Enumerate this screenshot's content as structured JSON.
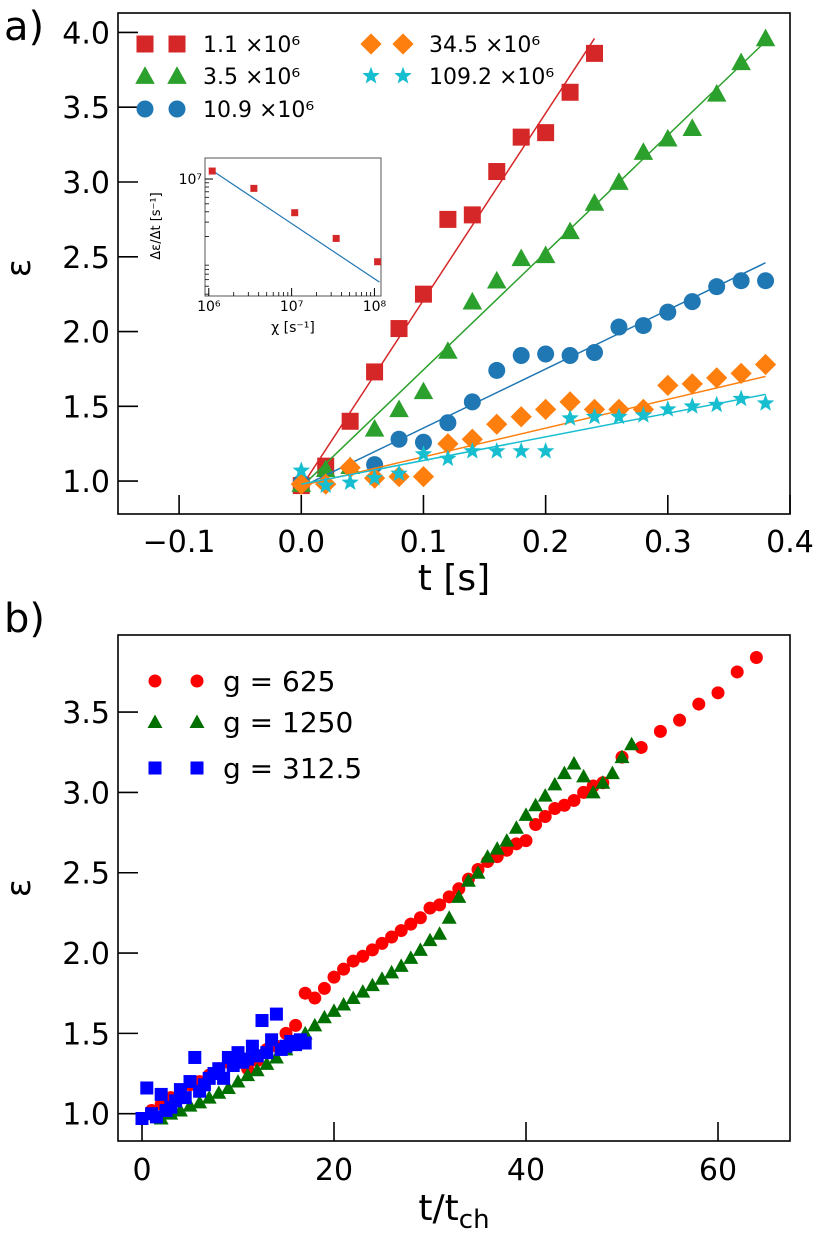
{
  "chart_data": [
    {
      "panel": "a)",
      "type": "scatter",
      "xlabel": "t [s]",
      "ylabel": "ε",
      "xlim": [
        -0.15,
        0.4
      ],
      "ylim": [
        0.78,
        4.13
      ],
      "xticks": [
        "−0.1",
        "0.0",
        "0.1",
        "0.2",
        "0.3",
        "0.4"
      ],
      "yticks": [
        "1.0",
        "1.5",
        "2.0",
        "2.5",
        "3.0",
        "3.5",
        "4.0"
      ],
      "legend_position": "top-left",
      "series": [
        {
          "name": "1.1 ×10⁶",
          "marker": "square",
          "color": "#d62728",
          "x": [
            0.0,
            0.02,
            0.04,
            0.06,
            0.08,
            0.1,
            0.12,
            0.14,
            0.16,
            0.18,
            0.2,
            0.22,
            0.24
          ],
          "y": [
            0.97,
            1.1,
            1.4,
            1.73,
            2.02,
            2.25,
            2.75,
            2.78,
            3.07,
            3.3,
            3.33,
            3.6,
            3.86
          ],
          "fit": [
            [
              0.0,
              0.96
            ],
            [
              0.24,
              3.96
            ]
          ]
        },
        {
          "name": "3.5 ×10⁶",
          "marker": "triangle",
          "color": "#2ca02c",
          "x": [
            0.0,
            0.02,
            0.04,
            0.06,
            0.08,
            0.1,
            0.12,
            0.14,
            0.16,
            0.18,
            0.2,
            0.22,
            0.24,
            0.26,
            0.28,
            0.3,
            0.32,
            0.34,
            0.36,
            0.38
          ],
          "y": [
            0.98,
            1.08,
            1.1,
            1.35,
            1.48,
            1.6,
            1.87,
            2.2,
            2.34,
            2.49,
            2.51,
            2.67,
            2.86,
            3.0,
            3.2,
            3.29,
            3.36,
            3.59,
            3.8,
            3.96
          ],
          "fit": [
            [
              0.0,
              0.96
            ],
            [
              0.38,
              3.94
            ]
          ]
        },
        {
          "name": "10.9 ×10⁶",
          "marker": "circle",
          "color": "#1f77b4",
          "x": [
            0.0,
            0.06,
            0.08,
            0.1,
            0.12,
            0.14,
            0.16,
            0.18,
            0.2,
            0.22,
            0.24,
            0.26,
            0.28,
            0.3,
            0.32,
            0.34,
            0.36,
            0.38
          ],
          "y": [
            0.99,
            1.11,
            1.28,
            1.26,
            1.39,
            1.53,
            1.74,
            1.84,
            1.85,
            1.84,
            1.86,
            2.03,
            2.04,
            2.13,
            2.2,
            2.3,
            2.34,
            2.34
          ],
          "fit": [
            [
              0.0,
              0.96
            ],
            [
              0.38,
              2.46
            ]
          ]
        },
        {
          "name": "34.5 ×10⁶",
          "marker": "diamond",
          "color": "#ff7f0e",
          "x": [
            0.0,
            0.02,
            0.04,
            0.06,
            0.08,
            0.1,
            0.12,
            0.14,
            0.16,
            0.18,
            0.2,
            0.22,
            0.24,
            0.26,
            0.28,
            0.3,
            0.32,
            0.34,
            0.36,
            0.38
          ],
          "y": [
            0.98,
            0.98,
            1.09,
            1.02,
            1.03,
            1.03,
            1.25,
            1.28,
            1.38,
            1.43,
            1.48,
            1.53,
            1.48,
            1.48,
            1.48,
            1.64,
            1.65,
            1.69,
            1.72,
            1.78
          ],
          "fit": [
            [
              0.0,
              0.97
            ],
            [
              0.38,
              1.7
            ]
          ]
        },
        {
          "name": "109.2 ×10⁶",
          "marker": "star",
          "color": "#17becf",
          "x": [
            0.0,
            0.02,
            0.04,
            0.06,
            0.08,
            0.1,
            0.12,
            0.14,
            0.16,
            0.18,
            0.2,
            0.22,
            0.24,
            0.26,
            0.28,
            0.3,
            0.32,
            0.34,
            0.36,
            0.38
          ],
          "y": [
            1.07,
            0.97,
            0.99,
            1.02,
            1.05,
            1.18,
            1.15,
            1.2,
            1.2,
            1.2,
            1.2,
            1.42,
            1.43,
            1.43,
            1.44,
            1.48,
            1.5,
            1.51,
            1.55,
            1.52
          ],
          "fit": [
            [
              0.0,
              0.98
            ],
            [
              0.38,
              1.58
            ]
          ]
        }
      ],
      "inset": {
        "type": "scatter",
        "scale": "log-log",
        "xlabel": "χ [s⁻¹]",
        "ylabel": "Δε/Δt [s⁻¹]",
        "xticks": [
          "10⁶",
          "10⁷",
          "10⁸"
        ],
        "yticks": [
          "10⁷"
        ],
        "xlim": [
          900000,
          120000000
        ],
        "ylim": [
          380000,
          18000000
        ],
        "x": [
          1100000,
          3500000,
          10900000,
          34500000,
          109200000
        ],
        "y": [
          12500000,
          7700000,
          3900000,
          1900000,
          990000
        ],
        "fit": [
          [
            1000000,
            13500000
          ],
          [
            115000000,
            560000
          ]
        ],
        "color": "#d62728",
        "line_color": "#1f77b4"
      }
    },
    {
      "panel": "b)",
      "type": "scatter",
      "xlabel": "t/t",
      "xlabel_sub": "ch",
      "ylabel": "ε",
      "xlim": [
        -2.5,
        67.5
      ],
      "ylim": [
        0.83,
        3.98
      ],
      "xticks": [
        "0",
        "20",
        "40",
        "60"
      ],
      "yticks": [
        "1.0",
        "1.5",
        "2.0",
        "2.5",
        "3.0",
        "3.5"
      ],
      "legend_position": "top-left",
      "series": [
        {
          "name": "g = 625",
          "marker": "circle",
          "color": "#ff0000",
          "x": [
            0,
            1,
            2,
            3,
            4,
            5,
            6,
            7,
            8,
            9,
            10,
            11,
            12,
            13,
            14,
            15,
            16,
            17,
            18,
            19,
            20,
            21,
            22,
            23,
            24,
            25,
            26,
            27,
            28,
            29,
            30,
            31,
            32,
            33,
            34,
            35,
            36,
            37,
            38,
            39,
            40,
            41,
            42,
            43,
            44,
            45,
            46,
            47,
            48,
            50,
            52,
            54,
            56,
            58,
            60,
            62,
            64
          ],
          "y": [
            0.97,
            1.02,
            1.06,
            1.1,
            1.14,
            1.18,
            1.2,
            1.24,
            1.28,
            1.32,
            1.36,
            1.28,
            1.33,
            1.4,
            1.42,
            1.5,
            1.55,
            1.75,
            1.72,
            1.78,
            1.85,
            1.9,
            1.95,
            1.98,
            2.02,
            2.06,
            2.1,
            2.14,
            2.18,
            2.22,
            2.28,
            2.3,
            2.35,
            2.4,
            2.46,
            2.52,
            2.57,
            2.6,
            2.64,
            2.68,
            2.7,
            2.8,
            2.85,
            2.9,
            2.92,
            2.95,
            3.0,
            3.04,
            3.06,
            3.22,
            3.28,
            3.38,
            3.45,
            3.55,
            3.62,
            3.75,
            3.84
          ]
        },
        {
          "name": "g = 1250",
          "marker": "triangle",
          "color": "#007000",
          "x": [
            2,
            3,
            4,
            5,
            6,
            7,
            8,
            9,
            10,
            11,
            12,
            13,
            14,
            15,
            16,
            17,
            18,
            19,
            20,
            21,
            22,
            23,
            24,
            25,
            26,
            27,
            28,
            29,
            30,
            31,
            32,
            33,
            34,
            35,
            36,
            37,
            38,
            39,
            40,
            41,
            42,
            43,
            44,
            45,
            46,
            47,
            48,
            49,
            50,
            51
          ],
          "y": [
            0.97,
            1.0,
            1.02,
            1.05,
            1.07,
            1.1,
            1.13,
            1.16,
            1.2,
            1.24,
            1.27,
            1.31,
            1.35,
            1.4,
            1.45,
            1.5,
            1.55,
            1.6,
            1.64,
            1.68,
            1.72,
            1.76,
            1.8,
            1.84,
            1.88,
            1.92,
            1.97,
            2.02,
            2.08,
            2.12,
            2.22,
            2.35,
            2.45,
            2.5,
            2.6,
            2.65,
            2.7,
            2.78,
            2.86,
            2.92,
            2.98,
            3.05,
            3.12,
            3.18,
            3.1,
            3.0,
            3.06,
            3.12,
            3.22,
            3.3
          ]
        },
        {
          "name": "g = 312.5",
          "marker": "square",
          "color": "#0000ff",
          "x": [
            0,
            0.5,
            1,
            1.5,
            2,
            2.5,
            3,
            3.5,
            4,
            4.5,
            5,
            5.5,
            6,
            6.5,
            7,
            7.5,
            8,
            8.5,
            9,
            9.5,
            10,
            10.5,
            11,
            11.5,
            12,
            12.5,
            13,
            13.5,
            14,
            14.5,
            15,
            15.5,
            16,
            16.5,
            17
          ],
          "y": [
            0.97,
            1.16,
            1.0,
            0.98,
            1.12,
            1.02,
            1.04,
            1.08,
            1.15,
            1.1,
            1.2,
            1.35,
            1.14,
            1.18,
            1.22,
            1.25,
            1.28,
            1.22,
            1.35,
            1.3,
            1.38,
            1.32,
            1.34,
            1.42,
            1.36,
            1.58,
            1.38,
            1.46,
            1.62,
            1.4,
            1.42,
            1.45,
            1.43,
            1.46,
            1.44
          ]
        }
      ]
    }
  ]
}
